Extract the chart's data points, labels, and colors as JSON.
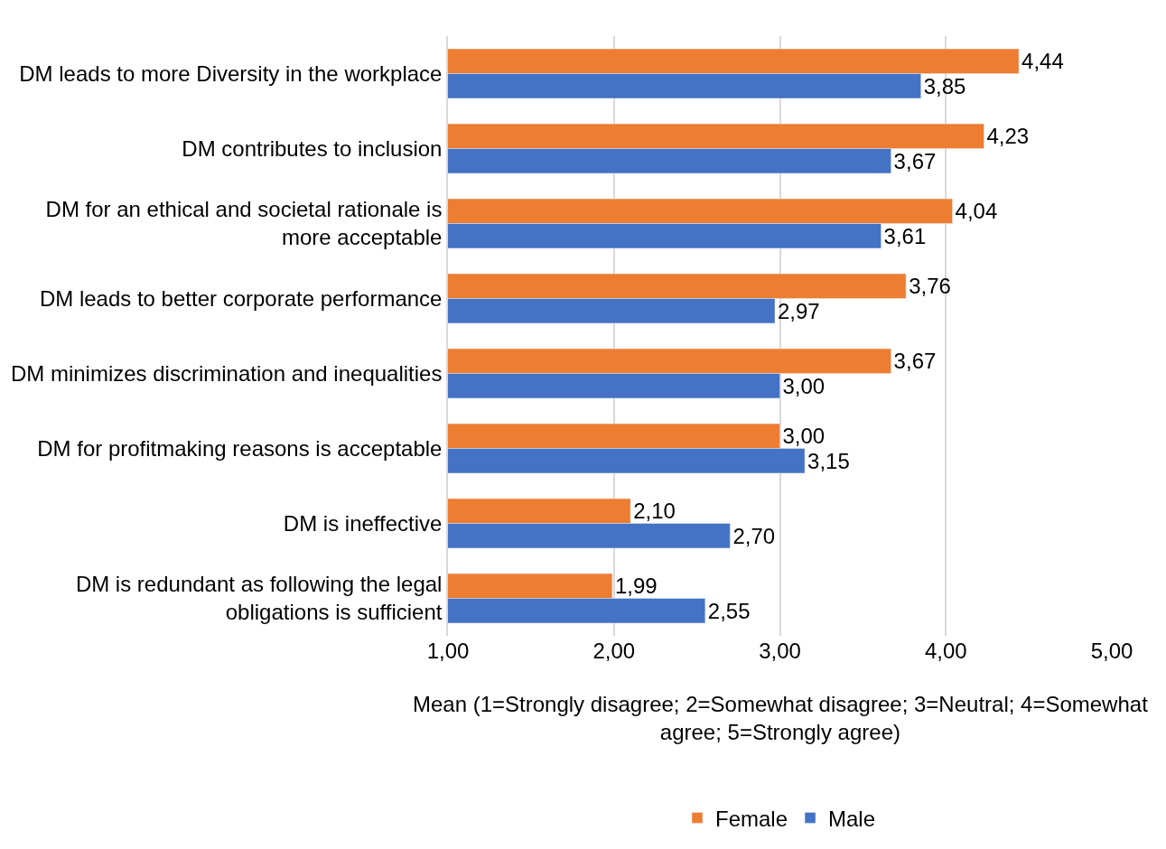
{
  "chart_data": {
    "type": "bar",
    "orientation": "horizontal",
    "categories": [
      "DM leads to more Diversity in the workplace",
      "DM contributes to inclusion",
      "DM for an ethical and societal rationale is more acceptable",
      "DM leads to better corporate performance",
      "DM minimizes discrimination and inequalities",
      "DM for profitmaking reasons is acceptable",
      "DM is ineffective",
      "DM is redundant as following the legal obligations is sufficient"
    ],
    "series": [
      {
        "name": "Female",
        "color": "#ed7d31",
        "values": [
          4.44,
          4.23,
          4.04,
          3.76,
          3.67,
          3.0,
          2.1,
          1.99
        ],
        "value_labels": [
          "4,44",
          "4,23",
          "4,04",
          "3,76",
          "3,67",
          "3,00",
          "2,10",
          "1,99"
        ]
      },
      {
        "name": "Male",
        "color": "#4472c4",
        "values": [
          3.85,
          3.67,
          3.61,
          2.97,
          3.0,
          3.15,
          2.7,
          2.55
        ],
        "value_labels": [
          "3,85",
          "3,67",
          "3,61",
          "2,97",
          "3,00",
          "3,15",
          "2,70",
          "2,55"
        ]
      }
    ],
    "xlabel": "Mean (1=Strongly disagree; 2=Somewhat disagree; 3=Neutral; 4=Somewhat agree; 5=Strongly agree)",
    "xlim": [
      1,
      5
    ],
    "xticks": [
      {
        "value": 1,
        "label": "1,00"
      },
      {
        "value": 2,
        "label": "2,00"
      },
      {
        "value": 3,
        "label": "3,00"
      },
      {
        "value": 4,
        "label": "4,00"
      },
      {
        "value": 5,
        "label": "5,00"
      }
    ],
    "grid": "x",
    "legend": "bottom"
  }
}
